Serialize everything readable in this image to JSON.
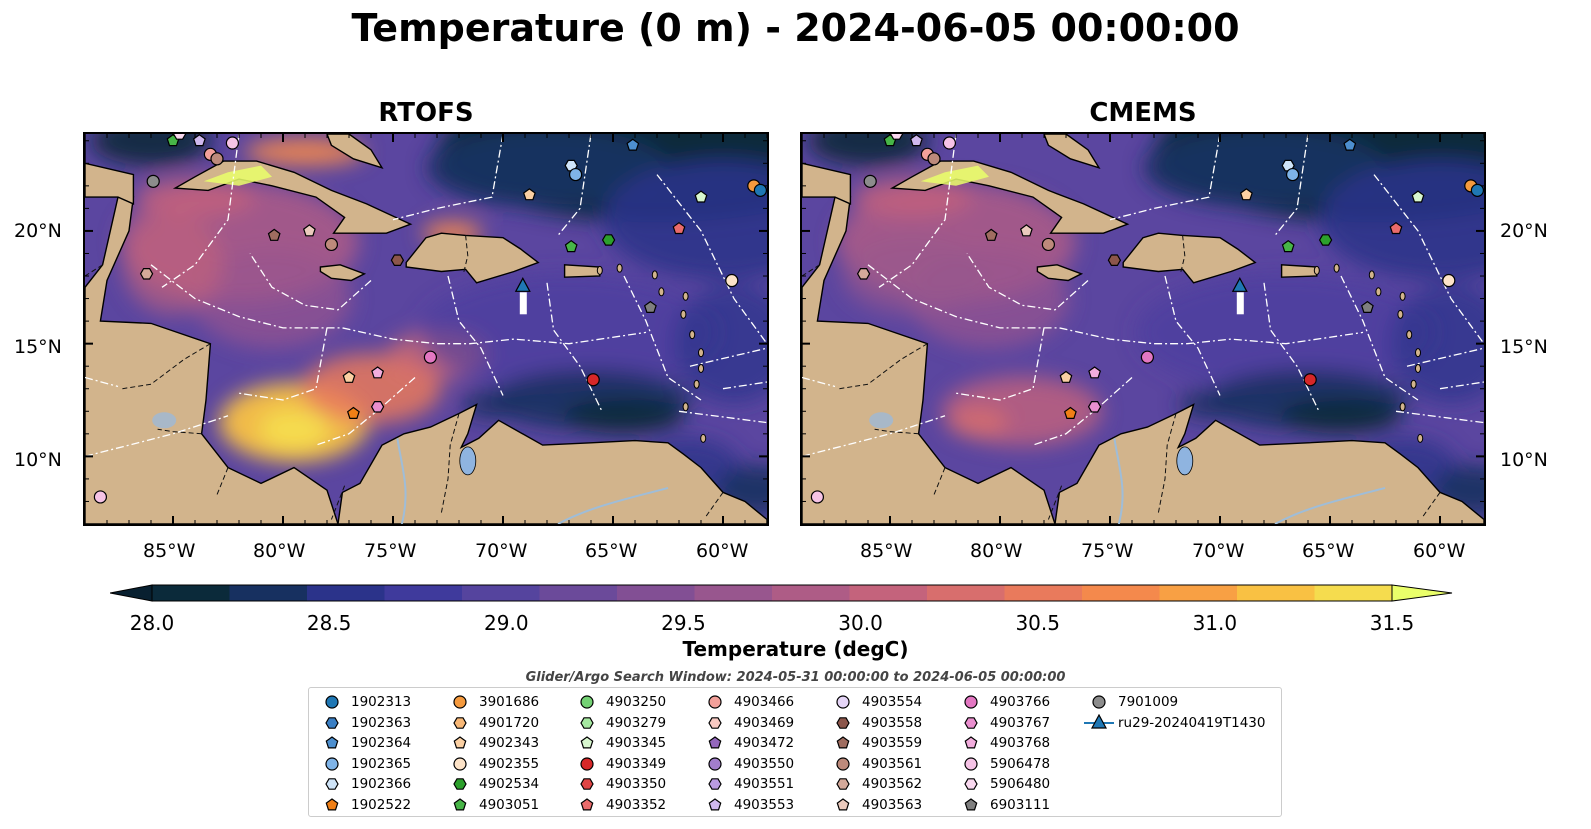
{
  "title": "Temperature (0 m) - 2024-06-05 00:00:00",
  "panels": [
    {
      "title": "RTOFS"
    },
    {
      "title": "CMEMS"
    }
  ],
  "axes": {
    "lat_labels": [
      "20°N",
      "15°N",
      "10°N"
    ],
    "lon_labels": [
      "85°W",
      "80°W",
      "75°W",
      "70°W",
      "65°W",
      "60°W"
    ]
  },
  "colorbar": {
    "label": "Temperature (degC)",
    "min": 28.0,
    "max": 31.5,
    "ticks": [
      "28.0",
      "28.5",
      "29.0",
      "29.5",
      "30.0",
      "30.5",
      "31.0",
      "31.5"
    ],
    "colors": [
      "#0b2a3a",
      "#173060",
      "#2b338a",
      "#3f3a9c",
      "#55449e",
      "#6b4a9a",
      "#824f94",
      "#98568e",
      "#ae5c86",
      "#c4637c",
      "#d86e6d",
      "#e97a5c",
      "#f4894c",
      "#f8a044",
      "#f9c143",
      "#f5dc4e"
    ],
    "extend_low_color": "#082030",
    "extend_high_color": "#eaff6a"
  },
  "search_window": "Glider/Argo Search Window: 2024-05-31 00:00:00 to 2024-06-05 00:00:00",
  "legend": [
    {
      "label": "1902313",
      "marker": "circle",
      "color": "#1f77b4"
    },
    {
      "label": "1902363",
      "marker": "hexagon",
      "color": "#3a7fc4"
    },
    {
      "label": "1902364",
      "marker": "pentagon",
      "color": "#4d8fcf"
    },
    {
      "label": "1902365",
      "marker": "circle",
      "color": "#7fb4e8"
    },
    {
      "label": "1902366",
      "marker": "hexagon",
      "color": "#cfe4f8"
    },
    {
      "label": "1902522",
      "marker": "pentagon",
      "color": "#f07f16"
    },
    {
      "label": "3901686",
      "marker": "circle",
      "color": "#f59a3e"
    },
    {
      "label": "4901720",
      "marker": "hexagon",
      "color": "#f8b877"
    },
    {
      "label": "4902343",
      "marker": "pentagon",
      "color": "#fbd0a3"
    },
    {
      "label": "4902355",
      "marker": "circle",
      "color": "#fde3c8"
    },
    {
      "label": "4902534",
      "marker": "hexagon",
      "color": "#2ca02c"
    },
    {
      "label": "4903051",
      "marker": "pentagon",
      "color": "#47b547"
    },
    {
      "label": "4903250",
      "marker": "circle",
      "color": "#74d174"
    },
    {
      "label": "4903279",
      "marker": "hexagon",
      "color": "#a6e8a1"
    },
    {
      "label": "4903345",
      "marker": "pentagon",
      "color": "#d8f7cf"
    },
    {
      "label": "4903349",
      "marker": "circle",
      "color": "#d62728"
    },
    {
      "label": "4903350",
      "marker": "hexagon",
      "color": "#e04545"
    },
    {
      "label": "4903352",
      "marker": "pentagon",
      "color": "#ea6b6b"
    },
    {
      "label": "4903466",
      "marker": "circle",
      "color": "#f3a09a"
    },
    {
      "label": "4903469",
      "marker": "hexagon",
      "color": "#f8c9c2"
    },
    {
      "label": "4903472",
      "marker": "pentagon",
      "color": "#9467bd"
    },
    {
      "label": "4903550",
      "marker": "circle",
      "color": "#a27dcc"
    },
    {
      "label": "4903551",
      "marker": "hexagon",
      "color": "#b99be0"
    },
    {
      "label": "4903553",
      "marker": "pentagon",
      "color": "#d0b8ee"
    },
    {
      "label": "4903554",
      "marker": "circle",
      "color": "#e5d5f7"
    },
    {
      "label": "4903558",
      "marker": "hexagon",
      "color": "#8c564b"
    },
    {
      "label": "4903559",
      "marker": "pentagon",
      "color": "#a06d60"
    },
    {
      "label": "4903561",
      "marker": "circle",
      "color": "#bd8a7b"
    },
    {
      "label": "4903562",
      "marker": "hexagon",
      "color": "#d4a99a"
    },
    {
      "label": "4903563",
      "marker": "pentagon",
      "color": "#ebcabd"
    },
    {
      "label": "4903766",
      "marker": "circle",
      "color": "#e377c2"
    },
    {
      "label": "4903767",
      "marker": "hexagon",
      "color": "#ea8fcf"
    },
    {
      "label": "4903768",
      "marker": "pentagon",
      "color": "#f2addd"
    },
    {
      "label": "5906478",
      "marker": "circle",
      "color": "#f6c3e6"
    },
    {
      "label": "5906480",
      "marker": "hexagon",
      "color": "#fad9f0"
    },
    {
      "label": "6903111",
      "marker": "pentagon",
      "color": "#7f7f7f"
    },
    {
      "label": "7901009",
      "marker": "circle",
      "color": "#8c8c8c"
    },
    {
      "label": "ru29-20240419T1430",
      "marker": "triangle-line",
      "color": "#1f77b4"
    }
  ],
  "map_data": {
    "extent": {
      "lon_min": -89,
      "lon_max": -58,
      "lat_min": 7,
      "lat_max": 24.3
    },
    "glider_position": {
      "lon": -69.1,
      "lat": 17.5
    },
    "markers": [
      {
        "id": "4903051",
        "lon": -85.0,
        "lat": 24.0
      },
      {
        "id": "5906480",
        "lon": -84.7,
        "lat": 24.3
      },
      {
        "id": "4903553",
        "lon": -83.8,
        "lat": 24.0
      },
      {
        "id": "4903466",
        "lon": -83.3,
        "lat": 23.4
      },
      {
        "id": "4903561",
        "lon": -83.0,
        "lat": 23.2
      },
      {
        "id": "5906478",
        "lon": -82.3,
        "lat": 23.9
      },
      {
        "id": "7901009",
        "lon": -85.9,
        "lat": 22.2
      },
      {
        "id": "1902364",
        "lon": -64.1,
        "lat": 23.8
      },
      {
        "id": "1902366",
        "lon": -66.9,
        "lat": 22.9
      },
      {
        "id": "1902365",
        "lon": -66.7,
        "lat": 22.5
      },
      {
        "id": "4902343",
        "lon": -68.8,
        "lat": 21.6
      },
      {
        "id": "4903345",
        "lon": -61.0,
        "lat": 21.5
      },
      {
        "id": "3901686",
        "lon": -58.6,
        "lat": 22.0
      },
      {
        "id": "1902313",
        "lon": -58.3,
        "lat": 21.8
      },
      {
        "id": "4903051",
        "lon": -66.9,
        "lat": 19.3
      },
      {
        "id": "4902534",
        "lon": -65.2,
        "lat": 19.6
      },
      {
        "id": "4903352",
        "lon": -62.0,
        "lat": 20.1
      },
      {
        "id": "4903559",
        "lon": -80.4,
        "lat": 19.8
      },
      {
        "id": "4903563",
        "lon": -78.8,
        "lat": 20.0
      },
      {
        "id": "4903561",
        "lon": -77.8,
        "lat": 19.4
      },
      {
        "id": "4903562",
        "lon": -86.2,
        "lat": 18.1
      },
      {
        "id": "4903558",
        "lon": -74.8,
        "lat": 18.7
      },
      {
        "id": "4902355",
        "lon": -59.6,
        "lat": 17.8
      },
      {
        "id": "6903111",
        "lon": -63.3,
        "lat": 16.6
      },
      {
        "id": "4903766",
        "lon": -73.3,
        "lat": 14.4
      },
      {
        "id": "4902343",
        "lon": -77.0,
        "lat": 13.5
      },
      {
        "id": "4903768",
        "lon": -75.7,
        "lat": 13.7
      },
      {
        "id": "1902522",
        "lon": -76.8,
        "lat": 11.9
      },
      {
        "id": "4903767",
        "lon": -75.7,
        "lat": 12.2
      },
      {
        "id": "4903349",
        "lon": -65.9,
        "lat": 13.4
      },
      {
        "id": "5906478",
        "lon": -88.3,
        "lat": 8.2
      }
    ]
  }
}
